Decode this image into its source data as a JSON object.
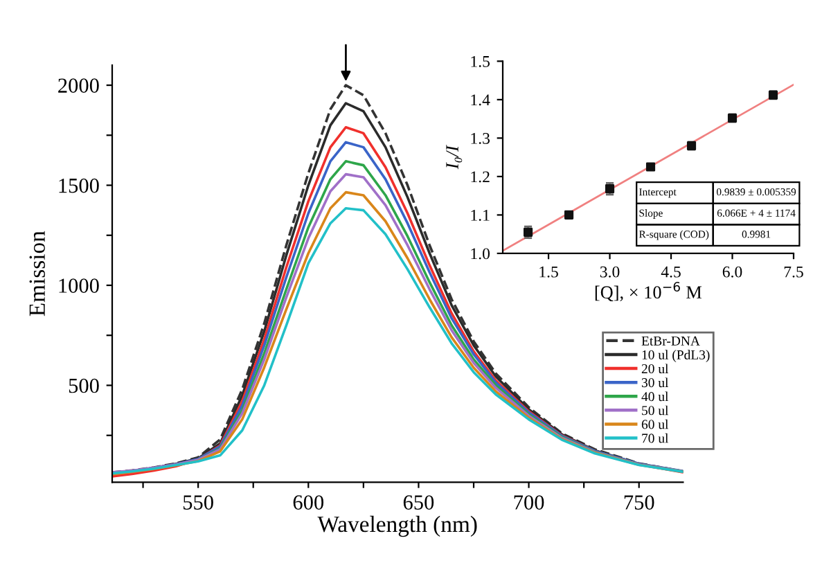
{
  "chart_data": [
    {
      "type": "line",
      "xlabel": "Wavelength (nm)",
      "ylabel": "Emission",
      "xlim": [
        511,
        770
      ],
      "ylim": [
        16,
        2100
      ],
      "xticks": [
        {
          "value": 525,
          "label": null
        },
        550,
        {
          "value": 575,
          "label": null
        },
        600,
        {
          "value": 625,
          "label": null
        },
        650,
        {
          "value": 675,
          "label": null
        },
        700,
        {
          "value": 725,
          "label": null
        },
        750
      ],
      "yticks": [
        {
          "value": 250,
          "label": null
        },
        500,
        {
          "value": 750,
          "label": null
        },
        1000,
        {
          "value": 1250,
          "label": null
        },
        1500,
        {
          "value": 1750,
          "label": null
        },
        2000
      ],
      "grid": false,
      "legend": "right",
      "marker": "none",
      "x": [
        511,
        520,
        530,
        540,
        550,
        560,
        570,
        580,
        590,
        600,
        610,
        617,
        625,
        635,
        645,
        655,
        665,
        675,
        685,
        700,
        715,
        730,
        750,
        770
      ],
      "series": [
        {
          "name": "EtBr-DNA",
          "color": "#333333",
          "line_style": "dashed",
          "values": [
            65,
            75,
            90,
            110,
            140,
            230,
            480,
            810,
            1200,
            1560,
            1880,
            2000,
            1950,
            1760,
            1500,
            1200,
            930,
            720,
            560,
            390,
            260,
            180,
            110,
            70
          ]
        },
        {
          "name": "10 ul (PdL3)",
          "color": "#2b2b2b",
          "line_style": "solid",
          "values": [
            60,
            72,
            88,
            108,
            135,
            210,
            450,
            770,
            1150,
            1500,
            1800,
            1910,
            1870,
            1690,
            1440,
            1160,
            900,
            700,
            545,
            380,
            255,
            175,
            108,
            70
          ]
        },
        {
          "name": "20 ul",
          "color": "#f0302c",
          "line_style": "solid",
          "values": [
            45,
            57,
            74,
            96,
            130,
            200,
            420,
            730,
            1090,
            1420,
            1690,
            1790,
            1760,
            1590,
            1360,
            1100,
            860,
            670,
            525,
            370,
            250,
            172,
            105,
            65
          ]
        },
        {
          "name": "30 ul",
          "color": "#3a64c8",
          "line_style": "solid",
          "values": [
            62,
            72,
            88,
            106,
            132,
            195,
            400,
            700,
            1040,
            1360,
            1620,
            1715,
            1690,
            1530,
            1310,
            1065,
            835,
            655,
            515,
            365,
            248,
            172,
            108,
            72
          ]
        },
        {
          "name": "40 ul",
          "color": "#2ea64a",
          "line_style": "solid",
          "values": [
            58,
            70,
            85,
            103,
            128,
            185,
            375,
            660,
            980,
            1290,
            1530,
            1620,
            1600,
            1450,
            1245,
            1015,
            800,
            630,
            500,
            355,
            242,
            168,
            105,
            70
          ]
        },
        {
          "name": "50 ul",
          "color": "#a070c8",
          "line_style": "solid",
          "values": [
            65,
            74,
            88,
            105,
            128,
            180,
            360,
            630,
            940,
            1235,
            1470,
            1555,
            1540,
            1400,
            1200,
            980,
            775,
            612,
            488,
            348,
            238,
            166,
            105,
            70
          ]
        },
        {
          "name": "60 ul",
          "color": "#d9861a",
          "line_style": "solid",
          "values": [
            55,
            67,
            82,
            100,
            122,
            170,
            330,
            590,
            880,
            1160,
            1385,
            1465,
            1450,
            1320,
            1135,
            930,
            740,
            588,
            470,
            338,
            232,
            163,
            103,
            68
          ]
        },
        {
          "name": "70 ul",
          "color": "#22c0c8",
          "line_style": "solid",
          "values": [
            60,
            70,
            84,
            102,
            120,
            150,
            275,
            500,
            800,
            1110,
            1310,
            1385,
            1375,
            1255,
            1080,
            890,
            710,
            566,
            455,
            330,
            228,
            160,
            102,
            68
          ]
        }
      ]
    },
    {
      "type": "scatter",
      "xlabel": "[Q], × 10$^{−6}$ M",
      "ylabel": "I₀/I",
      "xlim": [
        0.38,
        7.5
      ],
      "ylim": [
        1.0,
        1.5
      ],
      "xticks": [
        1.5,
        {
          "value": 3,
          "label": "3.0"
        },
        4.5,
        {
          "value": 6,
          "label": "6.0"
        },
        7.5
      ],
      "yticks": [
        {
          "value": 1,
          "label": "1.0"
        },
        1.1,
        1.2,
        1.3,
        1.4,
        1.5
      ],
      "grid": false,
      "legend": false,
      "annotations": [
        "Intercept",
        "0.9839 ± 0.005359",
        "Slope",
        "6.066E + 4 ± 1174",
        "R-square (COD)",
        "0.9981"
      ],
      "series": [
        {
          "type": "line",
          "color": "#f08080",
          "x": [
            0.4,
            7.5
          ],
          "values": [
            1.008,
            1.439
          ]
        },
        {
          "type": "scatter",
          "color": "#111111",
          "marker": "square",
          "x": [
            1,
            2,
            3,
            4,
            5,
            6,
            7
          ],
          "values": [
            1.055,
            1.1,
            1.168,
            1.225,
            1.28,
            1.352,
            1.412
          ],
          "errors": [
            0.015,
            0.005,
            0.015,
            0.005,
            0.01,
            0.01,
            0.01
          ]
        }
      ]
    }
  ]
}
